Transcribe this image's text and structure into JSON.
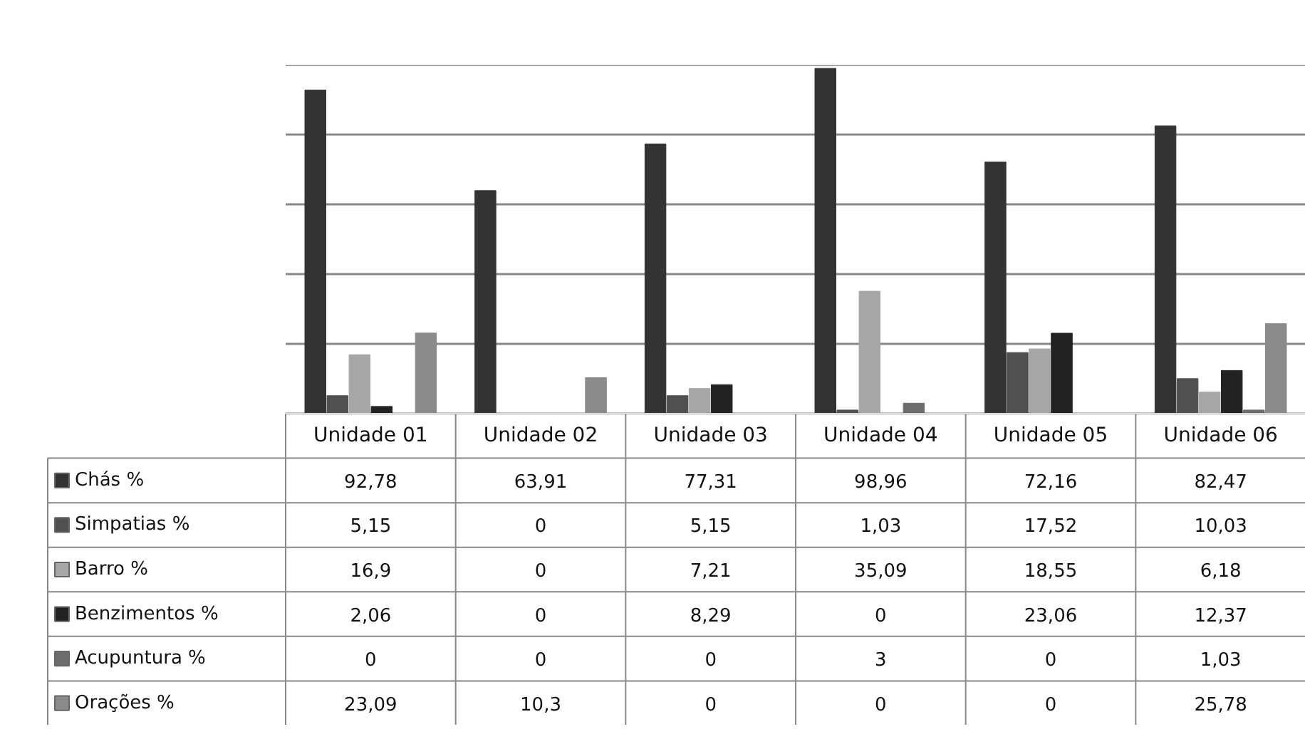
{
  "chart_data": {
    "type": "bar",
    "categories": [
      "Unidade 01",
      "Unidade 02",
      "Unidade 03",
      "Unidade 04",
      "Unidade 05",
      "Unidade 06"
    ],
    "series": [
      {
        "name": "Chás %",
        "color": "#333333",
        "values": [
          92.78,
          63.91,
          77.31,
          98.96,
          72.16,
          82.47
        ],
        "value_labels": [
          "92,78",
          "63,91",
          "77,31",
          "98,96",
          "72,16",
          "82,47"
        ]
      },
      {
        "name": "Simpatias %",
        "color": "#505050",
        "values": [
          5.15,
          0,
          5.15,
          1.03,
          17.52,
          10.03
        ],
        "value_labels": [
          "5,15",
          "0",
          "5,15",
          "1,03",
          "17,52",
          "10,03"
        ]
      },
      {
        "name": "Barro %",
        "color": "#a6a6a6",
        "values": [
          16.9,
          0,
          7.21,
          35.09,
          18.55,
          6.18
        ],
        "value_labels": [
          "16,9",
          "0",
          "7,21",
          "35,09",
          "18,55",
          "6,18"
        ]
      },
      {
        "name": "Benzimentos %",
        "color": "#222222",
        "values": [
          2.06,
          0,
          8.29,
          0,
          23.06,
          12.37
        ],
        "value_labels": [
          "2,06",
          "0",
          "8,29",
          "0",
          "23,06",
          "12,37"
        ]
      },
      {
        "name": "Acupuntura %",
        "color": "#6c6c6c",
        "values": [
          0,
          0,
          0,
          3,
          0,
          1.03
        ],
        "value_labels": [
          "0",
          "0",
          "0",
          "3",
          "0",
          "1,03"
        ]
      },
      {
        "name": "Orações %",
        "color": "#8a8a8a",
        "values": [
          23.09,
          10.3,
          0,
          0,
          0,
          25.78
        ],
        "value_labels": [
          "23,09",
          "10,3",
          "0",
          "0",
          "0",
          "25,78"
        ]
      }
    ],
    "ylim": [
      0,
      100
    ],
    "yticks": [
      {
        "value": 0,
        "label": null
      },
      {
        "value": 20,
        "label": null
      },
      {
        "value": 40,
        "label": null
      },
      {
        "value": 60,
        "label": null
      },
      {
        "value": 80,
        "label": null
      },
      {
        "value": 100,
        "label": null
      }
    ],
    "tick_labels": "x",
    "grid": "y",
    "legend": "bottom"
  }
}
